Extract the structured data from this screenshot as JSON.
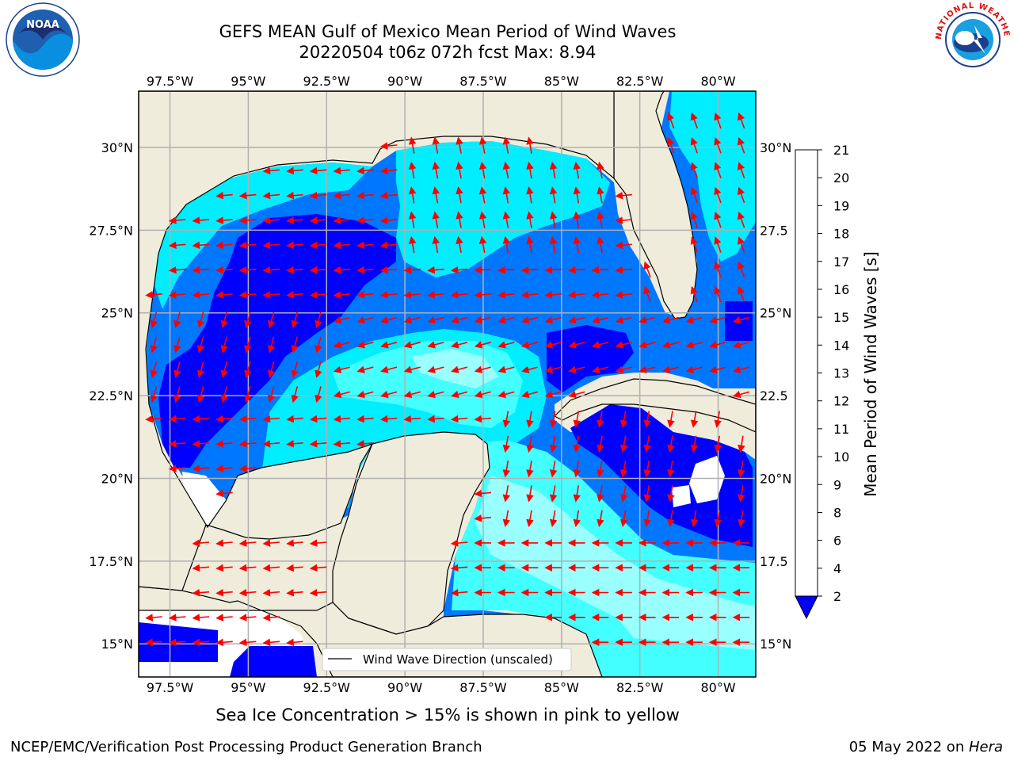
{
  "header": {
    "title_line1": "GEFS MEAN Gulf of Mexico Mean Period of Wind Waves",
    "title_line2": "20220504 t06z 072h fcst   Max: 8.94"
  },
  "logos": {
    "left": "noaa-logo",
    "left_text": "NOAA",
    "right": "nws-logo",
    "right_text": "NATIONAL WEATHER SERVICE"
  },
  "map": {
    "lon_range": [
      -98.5,
      -78.8
    ],
    "lat_range": [
      14.0,
      31.7
    ],
    "lon_ticks": [
      {
        "value": -97.5,
        "label": "97.5°W"
      },
      {
        "value": -95,
        "label": "95°W"
      },
      {
        "value": -92.5,
        "label": "92.5°W"
      },
      {
        "value": -90,
        "label": "90°W"
      },
      {
        "value": -87.5,
        "label": "87.5°W"
      },
      {
        "value": -85,
        "label": "85°W"
      },
      {
        "value": -82.5,
        "label": "82.5°W"
      },
      {
        "value": -80,
        "label": "80°W"
      }
    ],
    "lat_ticks": [
      {
        "value": 30,
        "label": "30°N"
      },
      {
        "value": 27.5,
        "label": "27.5°N"
      },
      {
        "value": 25,
        "label": "25°N"
      },
      {
        "value": 22.5,
        "label": "22.5°N"
      },
      {
        "value": 20,
        "label": "20°N"
      },
      {
        "value": 17.5,
        "label": "17.5°N"
      },
      {
        "value": 15,
        "label": "15°N"
      }
    ],
    "right_lat_labels": [
      {
        "value": 30,
        "label": "30°N"
      },
      {
        "value": 27.5,
        "label": "27.5"
      },
      {
        "value": 25,
        "label": "25°N"
      },
      {
        "value": 22.5,
        "label": "22.5"
      },
      {
        "value": 20,
        "label": "20°N"
      },
      {
        "value": 17.5,
        "label": "17.5"
      },
      {
        "value": 15,
        "label": "15°N"
      }
    ],
    "grid": true,
    "land_color": "#efecdc",
    "arrow_color": "#ff0000",
    "legend_label": "Wind Wave Direction (unscaled)",
    "legend_position": "bottom-center"
  },
  "colorbar": {
    "label": "Mean Period of Wind Waves [s]",
    "levels": [
      2,
      4,
      6,
      8,
      9,
      10,
      11,
      12,
      13,
      14,
      15,
      16,
      17,
      18,
      19,
      20,
      21
    ],
    "colors": [
      "#0077ff",
      "#00eeff",
      "#44ffff",
      "#99ffff",
      "#55ff88",
      "#00ee00",
      "#55ee00",
      "#99ee00",
      "#ccff00",
      "#eeff00",
      "#ffff00",
      "#ffdd00",
      "#ffbb00",
      "#ff8800",
      "#ff5500",
      "#ff2200"
    ],
    "under_color": "#0000ff",
    "extend": "min"
  },
  "chart_data": {
    "type": "heatmap",
    "variable": "Mean Period of Wind Waves",
    "units": "s",
    "max": 8.94,
    "regions": [
      {
        "lon": -93.5,
        "lat": 26.0,
        "period_s": 2.5
      },
      {
        "lon": -89.0,
        "lat": 28.5,
        "period_s": 5.0
      },
      {
        "lon": -89.0,
        "lat": 23.5,
        "period_s": 6.0
      },
      {
        "lon": -91.5,
        "lat": 21.5,
        "period_s": 5.0
      },
      {
        "lon": -84.0,
        "lat": 24.0,
        "period_s": 2.5
      },
      {
        "lon": -80.5,
        "lat": 20.5,
        "period_s": 2.5
      },
      {
        "lon": -85.5,
        "lat": 18.5,
        "period_s": 8.5
      },
      {
        "lon": -81.0,
        "lat": 16.5,
        "period_s": 8.5
      },
      {
        "lon": -97.0,
        "lat": 22.5,
        "period_s": 2.5
      },
      {
        "lon": -80.5,
        "lat": 29.0,
        "period_s": 5.0
      }
    ]
  },
  "footer": {
    "sea_ice_note": "Sea Ice Concentration > 15% is shown in pink to yellow",
    "left": "NCEP/EMC/Verification Post Processing Product Generation Branch",
    "right_date": "05 May 2022 on ",
    "right_machine": "Hera"
  }
}
